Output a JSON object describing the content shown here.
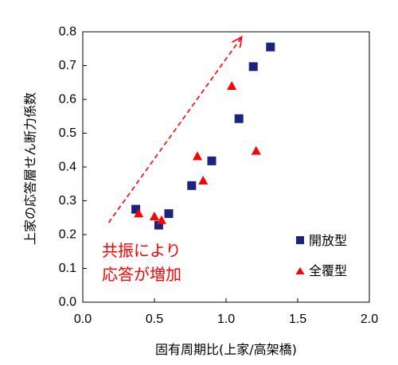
{
  "chart_data": {
    "type": "scatter",
    "xlabel": "固有周期比(上家/高架橋)",
    "ylabel": "上家の応答層せん断力係数",
    "xlim": [
      0.0,
      2.0
    ],
    "ylim": [
      0.0,
      0.8
    ],
    "x_ticks": [
      "0.0",
      "0.5",
      "1.0",
      "1.5",
      "2.0"
    ],
    "y_ticks": [
      "0.0",
      "0.1",
      "0.2",
      "0.3",
      "0.4",
      "0.5",
      "0.6",
      "0.7",
      "0.8"
    ],
    "grid": false,
    "legend_position": "bottom-right",
    "series": [
      {
        "name": "開放型",
        "marker": "square",
        "color": "#1a237e",
        "points": [
          {
            "x": 0.37,
            "y": 0.275
          },
          {
            "x": 0.53,
            "y": 0.228
          },
          {
            "x": 0.6,
            "y": 0.262
          },
          {
            "x": 0.76,
            "y": 0.345
          },
          {
            "x": 0.9,
            "y": 0.418
          },
          {
            "x": 1.09,
            "y": 0.543
          },
          {
            "x": 1.19,
            "y": 0.697
          },
          {
            "x": 1.31,
            "y": 0.755
          }
        ]
      },
      {
        "name": "全覆型",
        "marker": "triangle",
        "color": "#ff0000",
        "points": [
          {
            "x": 0.39,
            "y": 0.263
          },
          {
            "x": 0.5,
            "y": 0.254
          },
          {
            "x": 0.55,
            "y": 0.243
          },
          {
            "x": 0.8,
            "y": 0.432
          },
          {
            "x": 0.84,
            "y": 0.36
          },
          {
            "x": 1.04,
            "y": 0.64
          },
          {
            "x": 1.21,
            "y": 0.448
          }
        ]
      }
    ],
    "annotations": {
      "text_line1": "共振により",
      "text_line2": "応答が増加",
      "color": "#ff0000",
      "arrow": {
        "from": {
          "x": 0.18,
          "y": 0.235
        },
        "to": {
          "x": 1.11,
          "y": 0.785
        },
        "style": "dashed"
      }
    }
  }
}
